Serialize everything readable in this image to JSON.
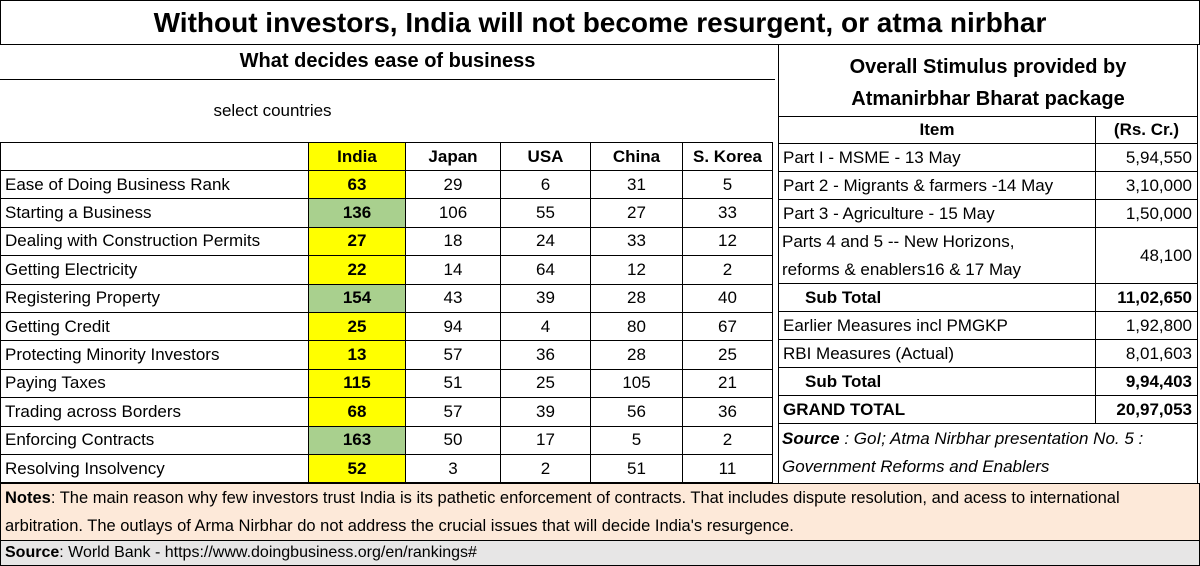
{
  "title": "Without investors, India will not become resurgent, or atma nirbhar",
  "left": {
    "title": "What decides  ease of business",
    "subtitle": "select countries",
    "columns": [
      "India",
      "Japan",
      "USA",
      "China",
      "S. Korea"
    ],
    "rows": [
      {
        "label": "Ease of Doing Business Rank",
        "values": [
          63,
          29,
          6,
          31,
          5
        ],
        "highlight": "#ffff00"
      },
      {
        "label": "Starting a Business",
        "values": [
          136,
          106,
          55,
          27,
          33
        ],
        "highlight": "#a9d08e"
      },
      {
        "label": "Dealing with Construction Permits",
        "values": [
          27,
          18,
          24,
          33,
          12
        ],
        "highlight": "#ffff00"
      },
      {
        "label": "Getting Electricity",
        "values": [
          22,
          14,
          64,
          12,
          2
        ],
        "highlight": "#ffff00"
      },
      {
        "label": "Registering Property",
        "values": [
          154,
          43,
          39,
          28,
          40
        ],
        "highlight": "#a9d08e"
      },
      {
        "label": "Getting Credit",
        "values": [
          25,
          94,
          4,
          80,
          67
        ],
        "highlight": "#ffff00"
      },
      {
        "label": "Protecting Minority Investors",
        "values": [
          13,
          57,
          36,
          28,
          25
        ],
        "highlight": "#ffff00"
      },
      {
        "label": "Paying Taxes",
        "values": [
          115,
          51,
          25,
          105,
          21
        ],
        "highlight": "#ffff00"
      },
      {
        "label": "Trading across Borders",
        "values": [
          68,
          57,
          39,
          56,
          36
        ],
        "highlight": "#ffff00"
      },
      {
        "label": "Enforcing Contracts",
        "values": [
          163,
          50,
          17,
          5,
          2
        ],
        "highlight": "#a9d08e"
      },
      {
        "label": "Resolving Insolvency",
        "values": [
          52,
          3,
          2,
          51,
          11
        ],
        "highlight": "#ffff00"
      }
    ]
  },
  "right": {
    "title": [
      "Overall Stimulus provided by",
      "Atmanirbhar Bharat package"
    ],
    "columns": [
      "Item",
      "(Rs. Cr.)"
    ],
    "rows": [
      {
        "item": "Part I - MSME -  13 May",
        "amount": "5,94,550"
      },
      {
        "item": "Part 2 - Migrants & farmers -14 May",
        "amount": "3,10,000"
      },
      {
        "item": "Part 3 - Agriculture - 15 May",
        "amount": "1,50,000"
      },
      {
        "item": "Parts 4 and 5  -- New Horizons, reforms & enablers16 & 17 May",
        "amount": "48,100"
      },
      {
        "item": "Sub Total",
        "amount": "11,02,650",
        "emphasis": "subtotal"
      },
      {
        "item": "Earlier Measures incl PMGKP",
        "amount": "1,92,800"
      },
      {
        "item": "RBI Measures (Actual)",
        "amount": "8,01,603"
      },
      {
        "item": "Sub Total",
        "amount": "9,94,403",
        "emphasis": "subtotal"
      },
      {
        "item": "GRAND TOTAL",
        "amount": "20,97,053",
        "emphasis": "total"
      }
    ],
    "source_label": "Source",
    "source_text": " : GoI; Atma Nirbhar presentation No. 5 : Government Reforms and Enablers"
  },
  "notes": {
    "label": "Notes",
    "text": ": The main reason why few investors trust India is its pathetic enforcement of contracts.  That includes dispute resolution, and acess to international arbitration.  The outlays of Arma Nirbhar do not address the crucial issues that will decide India's resurgence."
  },
  "source": {
    "label": "Source",
    "text": ": World Bank - https://www.doingbusiness.org/en/rankings#"
  }
}
